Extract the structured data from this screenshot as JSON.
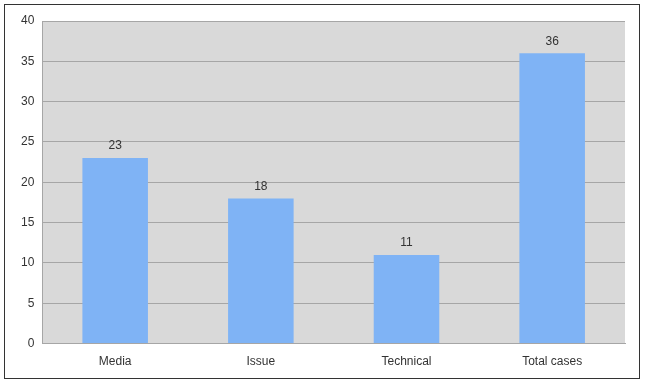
{
  "chart_data": {
    "type": "bar",
    "categories": [
      "Media",
      "Issue",
      "Technical",
      "Total cases"
    ],
    "values": [
      23,
      18,
      11,
      36
    ],
    "color": "#7fb3f5",
    "ylim": [
      0,
      40
    ],
    "yticks": [
      0,
      5,
      10,
      15,
      20,
      25,
      30,
      35,
      40
    ],
    "grid": true,
    "data_labels": true
  }
}
